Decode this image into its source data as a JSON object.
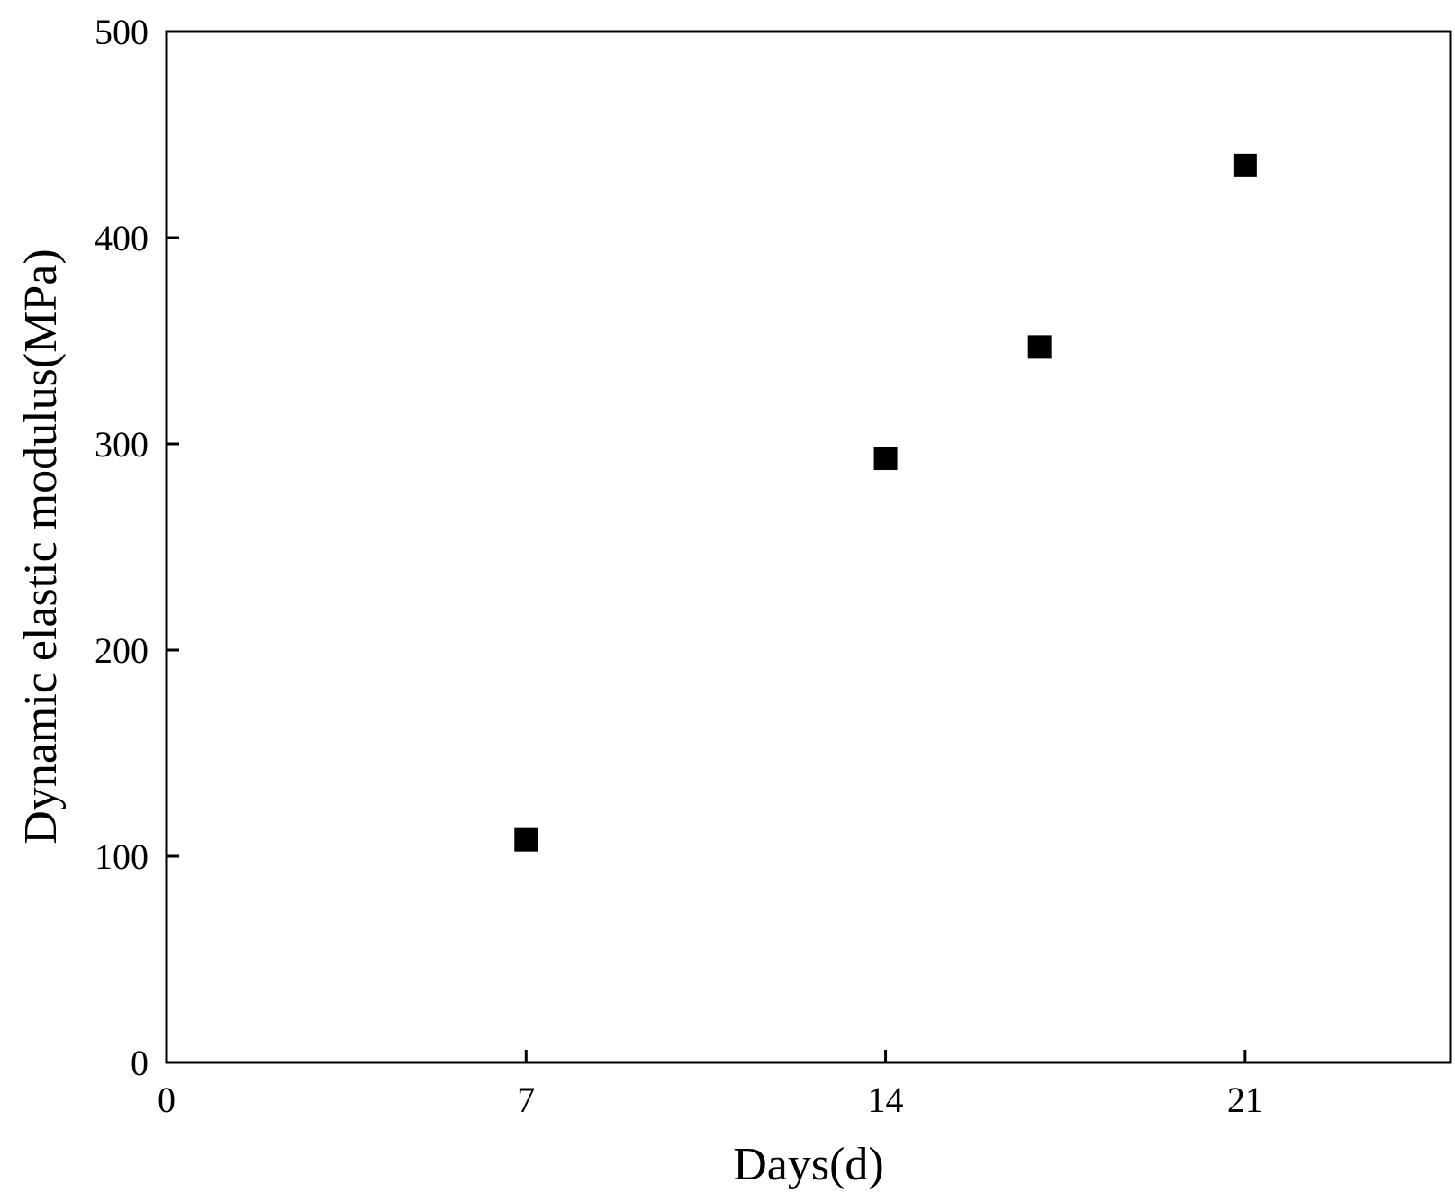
{
  "chart_data": {
    "type": "scatter",
    "title": "",
    "xlabel": "Days(d)",
    "ylabel": "Dynamic elastic modulus(MPa)",
    "xlim": [
      0,
      25
    ],
    "ylim": [
      0,
      500
    ],
    "x_ticks": [
      0,
      7,
      14,
      21
    ],
    "x_tick_labels": [
      "0",
      "7",
      "14",
      "21"
    ],
    "y_ticks": [
      0,
      100,
      200,
      300,
      400,
      500
    ],
    "y_tick_labels": [
      "0",
      "100",
      "200",
      "300",
      "400",
      "500"
    ],
    "grid": false,
    "legend": "none",
    "marker": "filled-square",
    "series": [
      {
        "x": [
          7,
          14,
          17,
          21
        ],
        "y": [
          108,
          293,
          347,
          435
        ]
      }
    ],
    "colors": {
      "marker": "#000000",
      "axis": "#000000",
      "background": "#ffffff"
    }
  }
}
